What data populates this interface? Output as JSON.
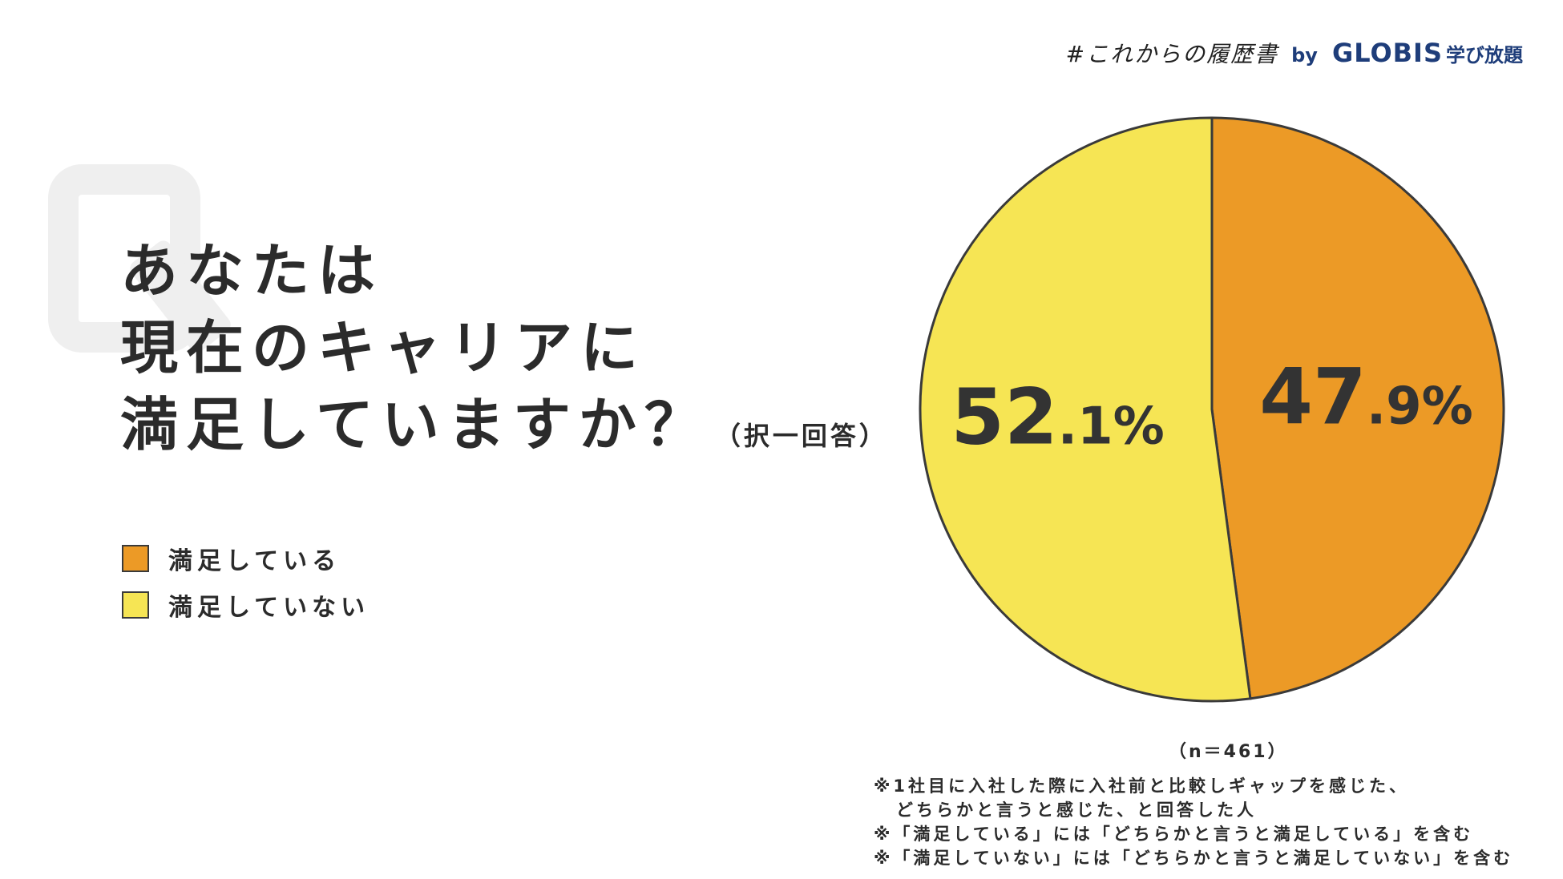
{
  "brand": {
    "hashtag": "#これからの履歴書",
    "by": "by",
    "company": "GLOBIS",
    "service": "学び放題"
  },
  "question": {
    "lines": [
      "あなたは",
      "現在のキャリアに",
      "満足していますか？"
    ],
    "note": "（択一回答）"
  },
  "colors": {
    "satisfied": "#ec9a26",
    "unsatisfied": "#f6e554",
    "outline": "#3a3a3a",
    "label": "#333333"
  },
  "chart_data": {
    "type": "pie",
    "categories": [
      "満足している",
      "満足していない"
    ],
    "values": [
      47.9,
      52.1
    ],
    "labels": [
      "47.9%",
      "52.1%"
    ],
    "legend_position": "left",
    "sample_size": "（n＝461）"
  },
  "footnotes": [
    "※1社目に入社した際に入社前と比較しギャップを感じた、",
    "どちらかと言うと感じた、と回答した人",
    "※「満足している」には「どちらかと言うと満足している」を含む",
    "※「満足していない」には「どちらかと言うと満足していない」を含む"
  ]
}
